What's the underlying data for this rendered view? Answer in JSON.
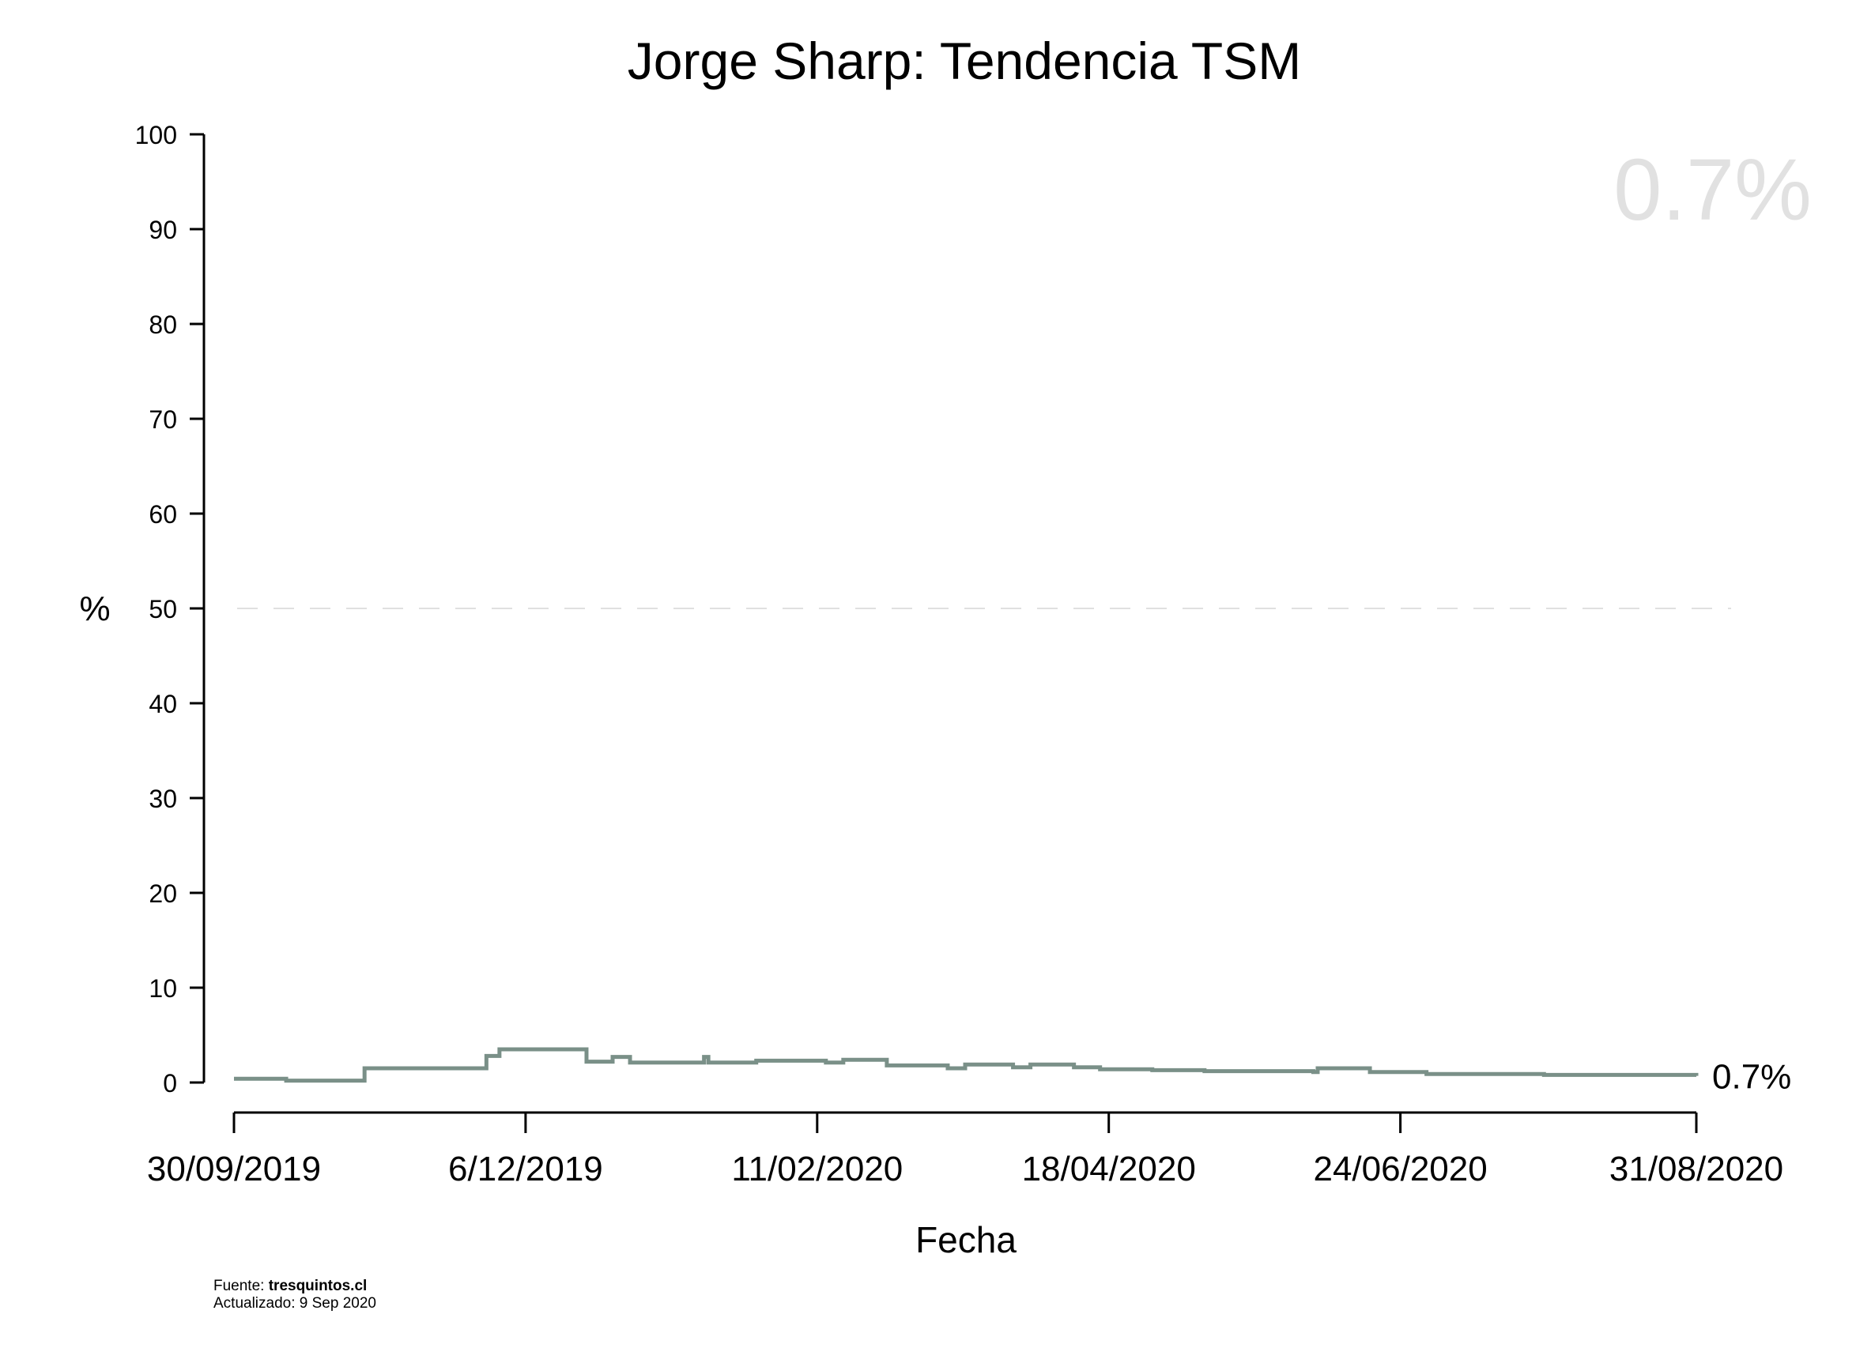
{
  "chart_data": {
    "type": "line",
    "title": "Jorge Sharp: Tendencia TSM",
    "xlabel": "Fecha",
    "ylabel": "%",
    "ylim": [
      0,
      100
    ],
    "yticks": [
      "0",
      "10",
      "20",
      "30",
      "40",
      "50",
      "60",
      "70",
      "80",
      "90",
      "100"
    ],
    "xlim": [
      "2019-09-30",
      "2020-08-31"
    ],
    "xticks": [
      {
        "date": "2019-09-30",
        "label": "30/09/2019"
      },
      {
        "date": "2019-12-06",
        "label": "6/12/2019"
      },
      {
        "date": "2020-02-11",
        "label": "11/02/2020"
      },
      {
        "date": "2020-04-18",
        "label": "18/04/2020"
      },
      {
        "date": "2020-06-24",
        "label": "24/06/2020"
      },
      {
        "date": "2020-08-31",
        "label": "31/08/2020"
      }
    ],
    "reference_line": {
      "y": 50,
      "style": "dashed",
      "color": "#e0e0e0"
    },
    "line_color": "#7a9088",
    "step": true,
    "series": [
      {
        "points": [
          [
            "2019-09-30",
            0.4
          ],
          [
            "2019-10-12",
            0.2
          ],
          [
            "2019-10-30",
            1.5
          ],
          [
            "2019-11-27",
            2.8
          ],
          [
            "2019-11-30",
            3.5
          ],
          [
            "2019-12-20",
            2.2
          ],
          [
            "2019-12-26",
            2.7
          ],
          [
            "2019-12-30",
            2.1
          ],
          [
            "2020-01-16",
            2.7
          ],
          [
            "2020-01-17",
            2.1
          ],
          [
            "2020-01-28",
            2.3
          ],
          [
            "2020-02-13",
            2.1
          ],
          [
            "2020-02-17",
            2.4
          ],
          [
            "2020-02-27",
            1.8
          ],
          [
            "2020-03-12",
            1.5
          ],
          [
            "2020-03-16",
            1.9
          ],
          [
            "2020-03-27",
            1.6
          ],
          [
            "2020-03-31",
            1.9
          ],
          [
            "2020-04-10",
            1.6
          ],
          [
            "2020-04-16",
            1.4
          ],
          [
            "2020-04-28",
            1.3
          ],
          [
            "2020-05-10",
            1.2
          ],
          [
            "2020-06-04",
            1.1
          ],
          [
            "2020-06-05",
            1.5
          ],
          [
            "2020-06-17",
            1.1
          ],
          [
            "2020-06-30",
            0.9
          ],
          [
            "2020-07-27",
            0.8
          ],
          [
            "2020-08-31",
            0.7
          ]
        ]
      }
    ],
    "last_value_label": "0.7%",
    "watermark": "0.7%"
  },
  "footer": {
    "source_prefix": "Fuente: ",
    "source": "tresquintos.cl",
    "updated": "Actualizado: 9 Sep 2020"
  },
  "colors": {
    "axis": "#000000",
    "line": "#7a9088",
    "watermark": "#e1e1e1",
    "refline": "#e0e0e0"
  }
}
